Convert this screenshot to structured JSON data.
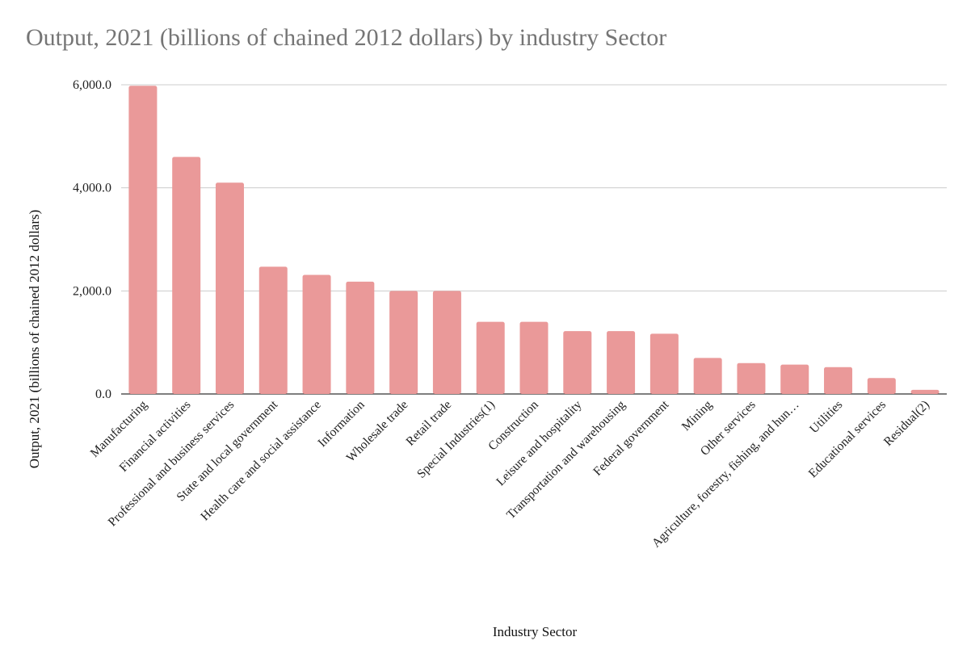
{
  "chart_data": {
    "type": "bar",
    "title": "Output, 2021 (billions of chained 2012 dollars) by industry Sector",
    "xlabel": "Industry Sector",
    "ylabel": "Output, 2021 (billions of chained 2012 dollars)",
    "ylim": [
      0,
      6000
    ],
    "yticks": [
      "0.0",
      "2,000.0",
      "4,000.0",
      "6,000.0"
    ],
    "grid": true,
    "bar_color": "#ea9999",
    "categories": [
      "Manufacturing",
      "Financial activities",
      "Professional and business services",
      "State and local government",
      "Health care and social assistance",
      "Information",
      "Wholesale trade",
      "Retail trade",
      "Special Industries(1)",
      "Construction",
      "Leisure and hospitality",
      "Transportation and warehousing",
      "Federal government",
      "Mining",
      "Other services",
      "Agriculture, forestry, fishing, and hun…",
      "Utilities",
      "Educational  services",
      "Residual(2)"
    ],
    "values": [
      5980,
      4600,
      4100,
      2470,
      2310,
      2180,
      2000,
      2000,
      1400,
      1400,
      1220,
      1220,
      1170,
      700,
      600,
      570,
      520,
      310,
      80
    ]
  }
}
